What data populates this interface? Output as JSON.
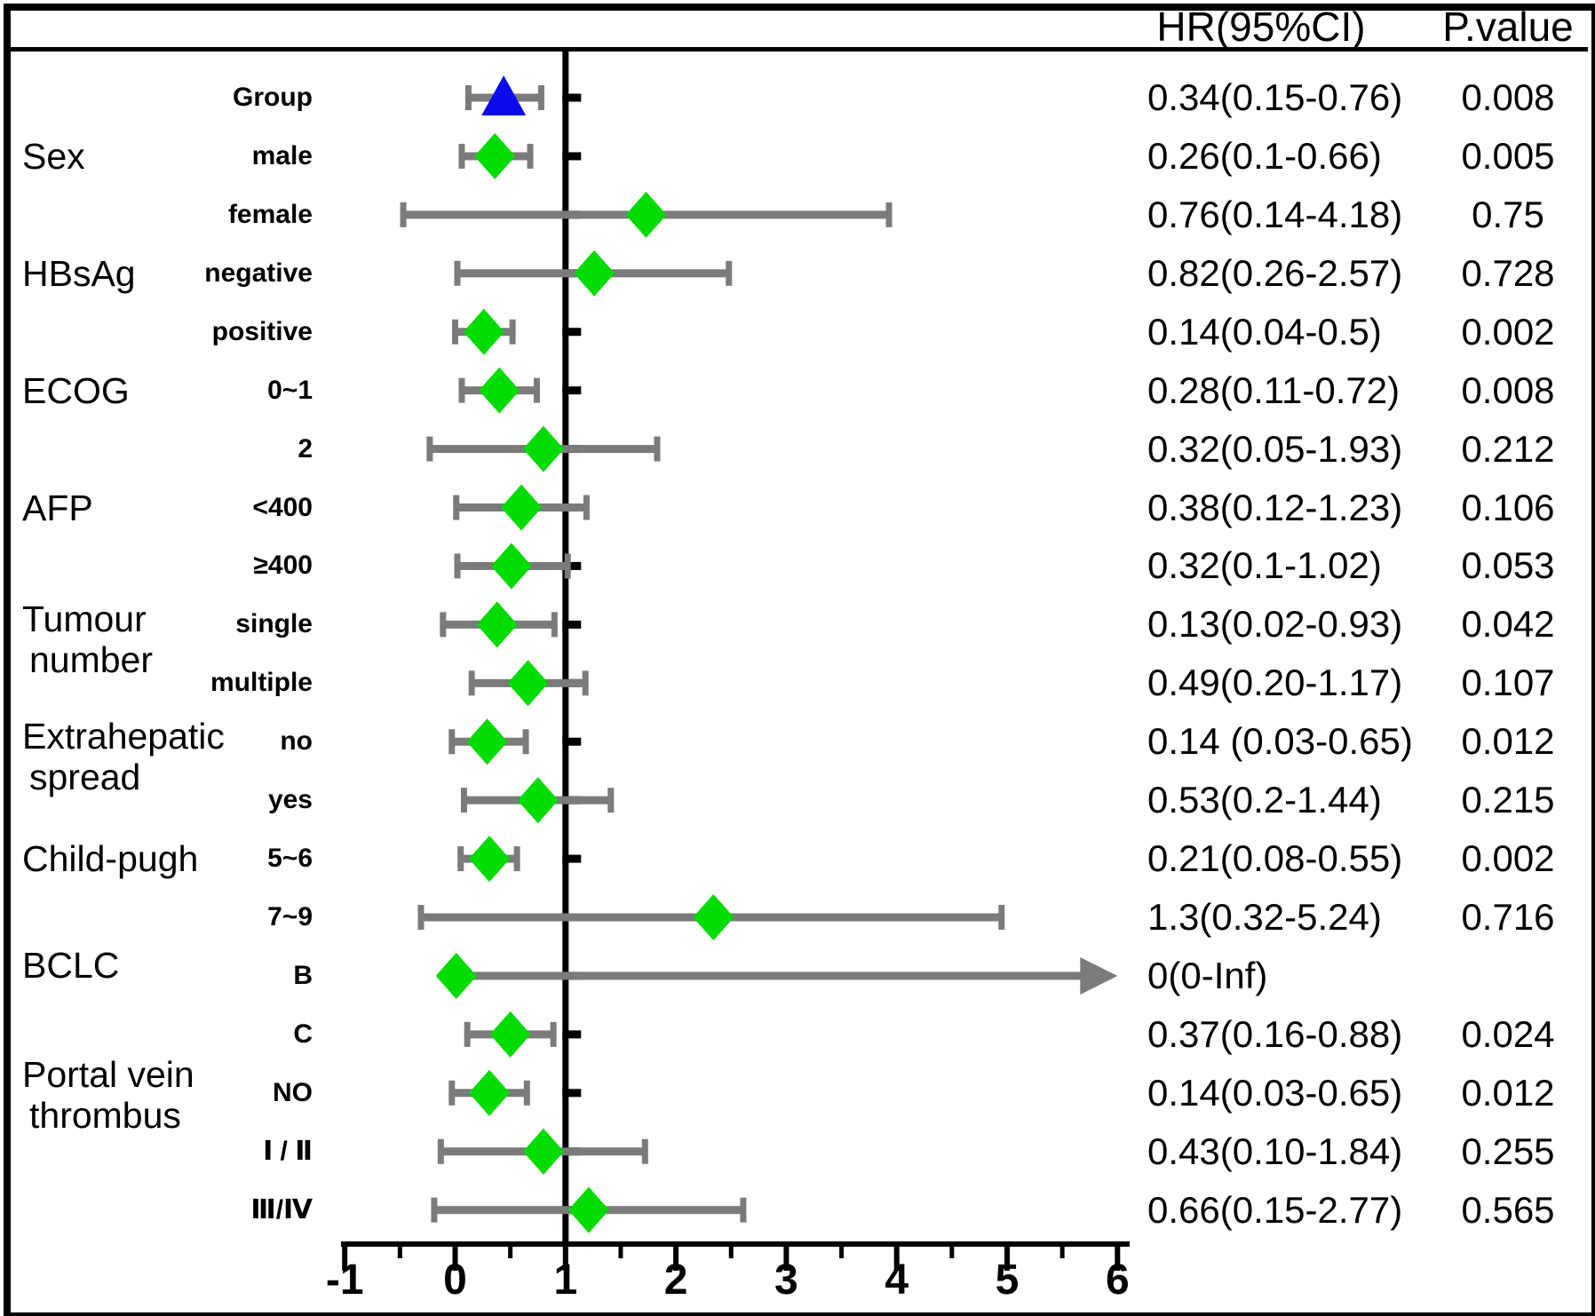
{
  "chart_data": {
    "type": "scatter",
    "subtype": "forest-plot",
    "title": "",
    "xlabel": "",
    "legend": null,
    "grid": false,
    "columns": {
      "hr": "HR(95%CI)",
      "p": "P.value"
    },
    "axis": {
      "x_ticks": [
        -1,
        0,
        1,
        2,
        3,
        4,
        5,
        6
      ],
      "minor_tick_step": 0.5,
      "xlim": [
        -1,
        6
      ],
      "reference_line_x": 1
    },
    "colors": {
      "diamond": "#00DB00",
      "triangle": "#0A0AEC",
      "ci_bar": "#7B7B7B",
      "line": "#000000",
      "background": "#FFFFFF"
    },
    "categories": [
      {
        "lines": [
          "Sex"
        ],
        "rows": [
          "male",
          "female"
        ]
      },
      {
        "lines": [
          "HBsAg"
        ],
        "rows": [
          "negative",
          "positive"
        ]
      },
      {
        "lines": [
          "ECOG"
        ],
        "rows": [
          "0~1",
          "2"
        ]
      },
      {
        "lines": [
          "AFP"
        ],
        "rows": [
          "<400",
          "≥400"
        ]
      },
      {
        "lines": [
          "Tumour",
          "number"
        ],
        "rows": [
          "single",
          "multiple"
        ]
      },
      {
        "lines": [
          "Extrahepatic",
          "spread"
        ],
        "rows": [
          "no",
          "yes"
        ]
      },
      {
        "lines": [
          "Child-pugh"
        ],
        "rows": [
          "5~6",
          "7~9"
        ]
      },
      {
        "lines": [
          "BCLC"
        ],
        "rows": [
          "B",
          "C"
        ]
      },
      {
        "lines": [
          "Portal vein",
          "thrombus"
        ],
        "rows": [
          "NO",
          "Ⅰ / Ⅱ",
          "Ⅲ/Ⅳ"
        ]
      }
    ],
    "rows": [
      {
        "label": "Group",
        "hr_text": "0.34(0.15-0.76)",
        "p_text": "0.008",
        "marker": "triangle",
        "x": 0.44,
        "lo": 0.12,
        "hi": 0.78,
        "arrow_right": false
      },
      {
        "label": "male",
        "hr_text": "0.26(0.1-0.66)",
        "p_text": "0.005",
        "marker": "diamond",
        "x": 0.36,
        "lo": 0.06,
        "hi": 0.68,
        "arrow_right": false
      },
      {
        "label": "female",
        "hr_text": "0.76(0.14-4.18)",
        "p_text": "0.75",
        "marker": "diamond",
        "x": 1.73,
        "lo": -0.47,
        "hi": 3.93,
        "arrow_right": false
      },
      {
        "label": "negative",
        "hr_text": "0.82(0.26-2.57)",
        "p_text": "0.728",
        "marker": "diamond",
        "x": 1.26,
        "lo": 0.02,
        "hi": 2.48,
        "arrow_right": false
      },
      {
        "label": "positive",
        "hr_text": "0.14(0.04-0.5)",
        "p_text": "0.002",
        "marker": "diamond",
        "x": 0.26,
        "lo": 0.0,
        "hi": 0.52,
        "arrow_right": false
      },
      {
        "label": "0~1",
        "hr_text": "0.28(0.11-0.72)",
        "p_text": "0.008",
        "marker": "diamond",
        "x": 0.4,
        "lo": 0.06,
        "hi": 0.74,
        "arrow_right": false
      },
      {
        "label": "2",
        "hr_text": "0.32(0.05-1.93)",
        "p_text": "0.212",
        "marker": "diamond",
        "x": 0.8,
        "lo": -0.23,
        "hi": 1.83,
        "arrow_right": false
      },
      {
        "label": "<400",
        "hr_text": "0.38(0.12-1.23)",
        "p_text": "0.106",
        "marker": "diamond",
        "x": 0.6,
        "lo": 0.01,
        "hi": 1.19,
        "arrow_right": false
      },
      {
        "label": "≥400",
        "hr_text": "0.32(0.1-1.02)",
        "p_text": "0.053",
        "marker": "diamond",
        "x": 0.51,
        "lo": 0.02,
        "hi": 1.02,
        "arrow_right": false
      },
      {
        "label": "single",
        "hr_text": "0.13(0.02-0.93)",
        "p_text": "0.042",
        "marker": "diamond",
        "x": 0.38,
        "lo": -0.11,
        "hi": 0.9,
        "arrow_right": false
      },
      {
        "label": "multiple",
        "hr_text": "0.49(0.20-1.17)",
        "p_text": "0.107",
        "marker": "diamond",
        "x": 0.66,
        "lo": 0.15,
        "hi": 1.18,
        "arrow_right": false
      },
      {
        "label": "no",
        "hr_text": "0.14 (0.03-0.65)",
        "p_text": "0.012",
        "marker": "diamond",
        "x": 0.29,
        "lo": -0.03,
        "hi": 0.64,
        "arrow_right": false
      },
      {
        "label": "yes",
        "hr_text": "0.53(0.2-1.44)",
        "p_text": "0.215",
        "marker": "diamond",
        "x": 0.75,
        "lo": 0.08,
        "hi": 1.41,
        "arrow_right": false
      },
      {
        "label": "5~6",
        "hr_text": "0.21(0.08-0.55)",
        "p_text": "0.002",
        "marker": "diamond",
        "x": 0.31,
        "lo": 0.05,
        "hi": 0.56,
        "arrow_right": false
      },
      {
        "label": "7~9",
        "hr_text": "1.3(0.32-5.24)",
        "p_text": "0.716",
        "marker": "diamond",
        "x": 2.34,
        "lo": -0.31,
        "hi": 4.95,
        "arrow_right": false
      },
      {
        "label": "B",
        "hr_text": "0(0-Inf)",
        "p_text": "",
        "marker": "diamond",
        "x": 0.01,
        "lo": 0.01,
        "hi": 6.0,
        "arrow_right": true
      },
      {
        "label": "C",
        "hr_text": "0.37(0.16-0.88)",
        "p_text": "0.024",
        "marker": "diamond",
        "x": 0.5,
        "lo": 0.11,
        "hi": 0.89,
        "arrow_right": false
      },
      {
        "label": "NO",
        "hr_text": "0.14(0.03-0.65)",
        "p_text": "0.012",
        "marker": "diamond",
        "x": 0.31,
        "lo": -0.03,
        "hi": 0.65,
        "arrow_right": false
      },
      {
        "label": "Ⅰ / Ⅱ",
        "hr_text": "0.43(0.10-1.84)",
        "p_text": "0.255",
        "marker": "diamond",
        "x": 0.8,
        "lo": -0.13,
        "hi": 1.72,
        "arrow_right": false
      },
      {
        "label": "Ⅲ/Ⅳ",
        "hr_text": "0.66(0.15-2.77)",
        "p_text": "0.565",
        "marker": "diamond",
        "x": 1.21,
        "lo": -0.19,
        "hi": 2.61,
        "arrow_right": false
      }
    ]
  }
}
